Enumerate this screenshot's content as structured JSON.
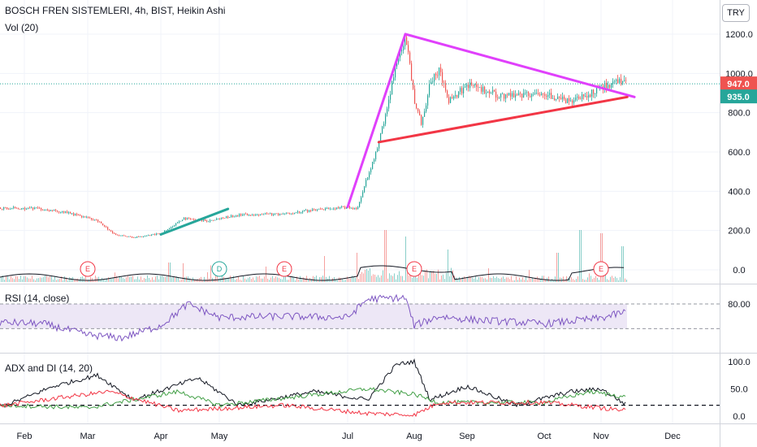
{
  "header": {
    "title": "BOSCH FREN SISTEMLERI, 4h, BIST, Heikin Ashi",
    "volume_label": "Vol (20)",
    "currency_button": "TRY"
  },
  "rsi_label": "RSI (14, close)",
  "adx_label": "ADX and DI (14, 20)",
  "x_tick_labels": [
    "Feb",
    "Mar",
    "Apr",
    "May",
    "Jul",
    "Aug",
    "Sep",
    "Oct",
    "Nov",
    "Dec"
  ],
  "chart_data": [
    {
      "type": "candlestick",
      "title": "BOSCH FREN SISTEMLERI, 4h, BIST, Heikin Ashi",
      "ylim": [
        -40,
        1300
      ],
      "yticks": [
        0,
        200,
        400,
        600,
        800,
        1000,
        1200
      ],
      "ytick_labels": [
        "0.0",
        "200.0",
        "400.0",
        "600.0",
        "800.0",
        "1000.0",
        "1200.0"
      ],
      "price_anchors": [
        {
          "t": "Jan 15",
          "v": 315
        },
        {
          "t": "Feb 5",
          "v": 312
        },
        {
          "t": "Feb 20",
          "v": 295
        },
        {
          "t": "Mar 5",
          "v": 250
        },
        {
          "t": "Mar 12",
          "v": 178
        },
        {
          "t": "Mar 20",
          "v": 165
        },
        {
          "t": "Apr 1",
          "v": 185
        },
        {
          "t": "Apr 12",
          "v": 260
        },
        {
          "t": "Apr 25",
          "v": 250
        },
        {
          "t": "May 10",
          "v": 280
        },
        {
          "t": "Jun 1",
          "v": 285
        },
        {
          "t": "Jun 15",
          "v": 305
        },
        {
          "t": "Jul 1",
          "v": 318
        },
        {
          "t": "Jul 5",
          "v": 312
        },
        {
          "t": "Jul 15",
          "v": 650
        },
        {
          "t": "Jul 23",
          "v": 1060
        },
        {
          "t": "Jul 27",
          "v": 1190
        },
        {
          "t": "Aug 1",
          "v": 860
        },
        {
          "t": "Aug 5",
          "v": 740
        },
        {
          "t": "Aug 10",
          "v": 960
        },
        {
          "t": "Aug 15",
          "v": 1020
        },
        {
          "t": "Aug 20",
          "v": 860
        },
        {
          "t": "Sep 1",
          "v": 940
        },
        {
          "t": "Sep 15",
          "v": 880
        },
        {
          "t": "Oct 1",
          "v": 900
        },
        {
          "t": "Oct 15",
          "v": 850
        },
        {
          "t": "Nov 1",
          "v": 930
        },
        {
          "t": "Nov 10",
          "v": 965
        }
      ],
      "last_price": 947.0,
      "price_tag": "947.0",
      "price_tag_color": "#ef5350",
      "second_tag": "935.0",
      "second_tag_color": "#26a69a",
      "trendlines": [
        {
          "name": "upper-triangle",
          "color": "#e040fb",
          "points": [
            {
              "t": "Jul 27",
              "v": 1200
            },
            {
              "t": "Nov 15",
              "v": 880
            }
          ]
        },
        {
          "name": "rally-line",
          "color": "#e040fb",
          "points": [
            {
              "t": "Jul 1",
              "v": 320
            },
            {
              "t": "Jul 27",
              "v": 1200
            }
          ]
        },
        {
          "name": "lower-triangle",
          "color": "#f23645",
          "points": [
            {
              "t": "Jul 15",
              "v": 650
            },
            {
              "t": "Nov 12",
              "v": 880
            }
          ]
        },
        {
          "name": "green-trend",
          "color": "#26a69a",
          "points": [
            {
              "t": "Apr 1",
              "v": 180
            },
            {
              "t": "May 5",
              "v": 310
            }
          ]
        }
      ],
      "events": [
        {
          "t": "Mar 1",
          "label": "E",
          "color": "#f23645"
        },
        {
          "t": "May 1",
          "label": "D",
          "color": "#26a69a"
        },
        {
          "t": "Jun 1",
          "label": "E",
          "color": "#f23645"
        },
        {
          "t": "Aug 1",
          "label": "E",
          "color": "#f23645"
        },
        {
          "t": "Nov 1",
          "label": "E",
          "color": "#f23645"
        }
      ],
      "up_color": "#26a69a",
      "down_color": "#ef5350"
    },
    {
      "type": "bar",
      "name": "Vol (20)",
      "volume_spikes": [
        {
          "t": "Apr 5",
          "v": 0.3
        },
        {
          "t": "Jun 20",
          "v": 0.4
        },
        {
          "t": "Jul 5",
          "v": 0.45
        },
        {
          "t": "Jul 18",
          "v": 0.8
        },
        {
          "t": "Jul 27",
          "v": 0.7
        },
        {
          "t": "Aug 20",
          "v": 0.5
        },
        {
          "t": "Oct 8",
          "v": 0.45
        },
        {
          "t": "Oct 20",
          "v": 0.8
        },
        {
          "t": "Nov 1",
          "v": 0.75
        },
        {
          "t": "Nov 10",
          "v": 0.55
        }
      ]
    },
    {
      "type": "line",
      "name": "RSI (14, close)",
      "ylim": [
        10,
        100
      ],
      "band": [
        30,
        70
      ],
      "yticks": [
        80
      ],
      "ytick_labels": [
        "80.00"
      ],
      "rsi_anchors": [
        {
          "t": "Jan 15",
          "v": 50
        },
        {
          "t": "Feb 10",
          "v": 48
        },
        {
          "t": "Mar 1",
          "v": 30
        },
        {
          "t": "Mar 15",
          "v": 25
        },
        {
          "t": "Apr 1",
          "v": 45
        },
        {
          "t": "Apr 15",
          "v": 80
        },
        {
          "t": "May 1",
          "v": 58
        },
        {
          "t": "Jun 1",
          "v": 60
        },
        {
          "t": "Jul 1",
          "v": 58
        },
        {
          "t": "Jul 10",
          "v": 88
        },
        {
          "t": "Jul 27",
          "v": 90
        },
        {
          "t": "Aug 1",
          "v": 45
        },
        {
          "t": "Aug 15",
          "v": 60
        },
        {
          "t": "Sep 1",
          "v": 55
        },
        {
          "t": "Oct 1",
          "v": 48
        },
        {
          "t": "Nov 1",
          "v": 57
        },
        {
          "t": "Nov 12",
          "v": 68
        }
      ],
      "line_color": "#7e57c2",
      "band_color": "#ede7f6"
    },
    {
      "type": "line",
      "name": "ADX and DI (14, 20)",
      "ylim": [
        0,
        110
      ],
      "yticks": [
        0,
        50,
        100
      ],
      "ytick_labels": [
        "0.0",
        "50.0",
        "100.0"
      ],
      "threshold": 20,
      "series": [
        {
          "name": "ADX",
          "color": "#131722",
          "anchors": [
            {
              "t": "Jan 15",
              "v": 20
            },
            {
              "t": "Feb 15",
              "v": 55
            },
            {
              "t": "Mar 5",
              "v": 75
            },
            {
              "t": "Mar 20",
              "v": 30
            },
            {
              "t": "Apr 20",
              "v": 70
            },
            {
              "t": "May 10",
              "v": 20
            },
            {
              "t": "Jun 15",
              "v": 45
            },
            {
              "t": "Jul 10",
              "v": 30
            },
            {
              "t": "Jul 23",
              "v": 95
            },
            {
              "t": "Aug 1",
              "v": 100
            },
            {
              "t": "Aug 10",
              "v": 30
            },
            {
              "t": "Sep 1",
              "v": 55
            },
            {
              "t": "Sep 20",
              "v": 20
            },
            {
              "t": "Oct 15",
              "v": 45
            },
            {
              "t": "Nov 1",
              "v": 50
            },
            {
              "t": "Nov 12",
              "v": 20
            }
          ]
        },
        {
          "name": "+DI",
          "color": "#43a047",
          "anchors": [
            {
              "t": "Jan 15",
              "v": 20
            },
            {
              "t": "Mar 1",
              "v": 15
            },
            {
              "t": "Apr 10",
              "v": 45
            },
            {
              "t": "May 1",
              "v": 20
            },
            {
              "t": "Jul 10",
              "v": 50
            },
            {
              "t": "Aug 1",
              "v": 40
            },
            {
              "t": "Aug 15",
              "v": 25
            },
            {
              "t": "Oct 1",
              "v": 25
            },
            {
              "t": "Oct 25",
              "v": 45
            },
            {
              "t": "Nov 12",
              "v": 35
            }
          ]
        },
        {
          "name": "-DI",
          "color": "#f23645",
          "anchors": [
            {
              "t": "Jan 15",
              "v": 20
            },
            {
              "t": "Feb 20",
              "v": 35
            },
            {
              "t": "Mar 10",
              "v": 45
            },
            {
              "t": "Apr 10",
              "v": 10
            },
            {
              "t": "Jun 1",
              "v": 20
            },
            {
              "t": "Jul 10",
              "v": 5
            },
            {
              "t": "Aug 1",
              "v": 2
            },
            {
              "t": "Aug 15",
              "v": 25
            },
            {
              "t": "Oct 1",
              "v": 25
            },
            {
              "t": "Nov 1",
              "v": 15
            },
            {
              "t": "Nov 12",
              "v": 10
            }
          ]
        }
      ]
    }
  ]
}
